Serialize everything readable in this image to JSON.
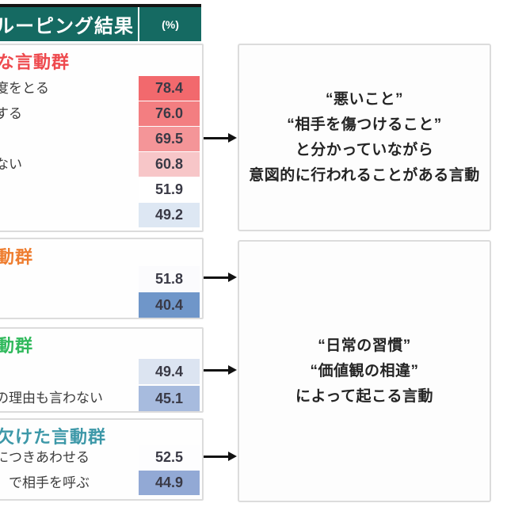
{
  "chart_data": {
    "type": "table",
    "title": "ルーピング結果",
    "unit": "(%)",
    "legend": "cell color scale: red = high %, white = mid, blue = low %",
    "groups": [
      {
        "name": "な言動群",
        "name_color": "#ee4a4e",
        "rows": [
          {
            "label": "度をとる",
            "value": 78.4
          },
          {
            "label": "する",
            "value": 76.0
          },
          {
            "label": "",
            "value": 69.5
          },
          {
            "label": "ない",
            "value": 60.8
          },
          {
            "label": "",
            "value": 51.9
          },
          {
            "label": "",
            "value": 49.2
          }
        ]
      },
      {
        "name": "動群",
        "name_color": "#ee7d2f",
        "rows": [
          {
            "label": "",
            "value": 51.8
          },
          {
            "label": "",
            "value": 40.4
          }
        ]
      },
      {
        "name": "動群",
        "name_color": "#30b95c",
        "rows": [
          {
            "label": "",
            "value": 49.4
          },
          {
            "label": "の理由も言わない",
            "value": 45.1
          }
        ]
      },
      {
        "name": "欠けた言動群",
        "name_color": "#3d98a8",
        "rows": [
          {
            "label": "につきあわせる",
            "value": 52.5
          },
          {
            "label": "　で相手を呼ぶ",
            "value": 44.9
          }
        ]
      }
    ],
    "annotations": [
      "“悪いこと” “相手を傷つけること” と分かっていながら 意図的に行われることがある言動",
      "“日常の習慣” “価値観の相違” によって起こる言動"
    ]
  },
  "header": {
    "title": "ルーピング結果",
    "unit": "(%)",
    "bg": "#156a62"
  },
  "groups": [
    {
      "title": "な言動群",
      "color": "#ee4a4e",
      "rows": [
        {
          "label": "度をとる",
          "value": "78.4",
          "bg": "#f2696d"
        },
        {
          "label": "する",
          "value": "76.0",
          "bg": "#f37e81"
        },
        {
          "label": "",
          "value": "69.5",
          "bg": "#f49598"
        },
        {
          "label": "ない",
          "value": "60.8",
          "bg": "#f7c6c8"
        },
        {
          "label": "",
          "value": "51.9",
          "bg": "#ffffff"
        },
        {
          "label": "",
          "value": "49.2",
          "bg": "#dde7f3"
        }
      ]
    },
    {
      "title": "動群",
      "color": "#ee7d2f",
      "rows": [
        {
          "label": "",
          "value": "51.8",
          "bg": "#fbfbfd"
        },
        {
          "label": "",
          "value": "40.4",
          "bg": "#6f96c9"
        }
      ]
    },
    {
      "title": "動群",
      "color": "#30b95c",
      "rows": [
        {
          "label": "",
          "value": "49.4",
          "bg": "#dce4f1"
        },
        {
          "label": "の理由も言わない",
          "value": "45.1",
          "bg": "#a7bbde"
        }
      ]
    },
    {
      "title": "欠けた言動群",
      "color": "#3d98a8",
      "rows": [
        {
          "label": "につきあわせる",
          "value": "52.5",
          "bg": "#fdfdfe"
        },
        {
          "label": "　で相手を呼ぶ",
          "value": "44.9",
          "bg": "#92a9d5"
        }
      ]
    }
  ],
  "annotations": [
    {
      "lines": [
        "“悪いこと”",
        "“相手を傷つけること”",
        "と分かっていながら",
        "意図的に行われることがある言動"
      ]
    },
    {
      "lines": [
        "“日常の習慣”",
        "“価値観の相違”",
        "によって起こる言動"
      ]
    }
  ]
}
